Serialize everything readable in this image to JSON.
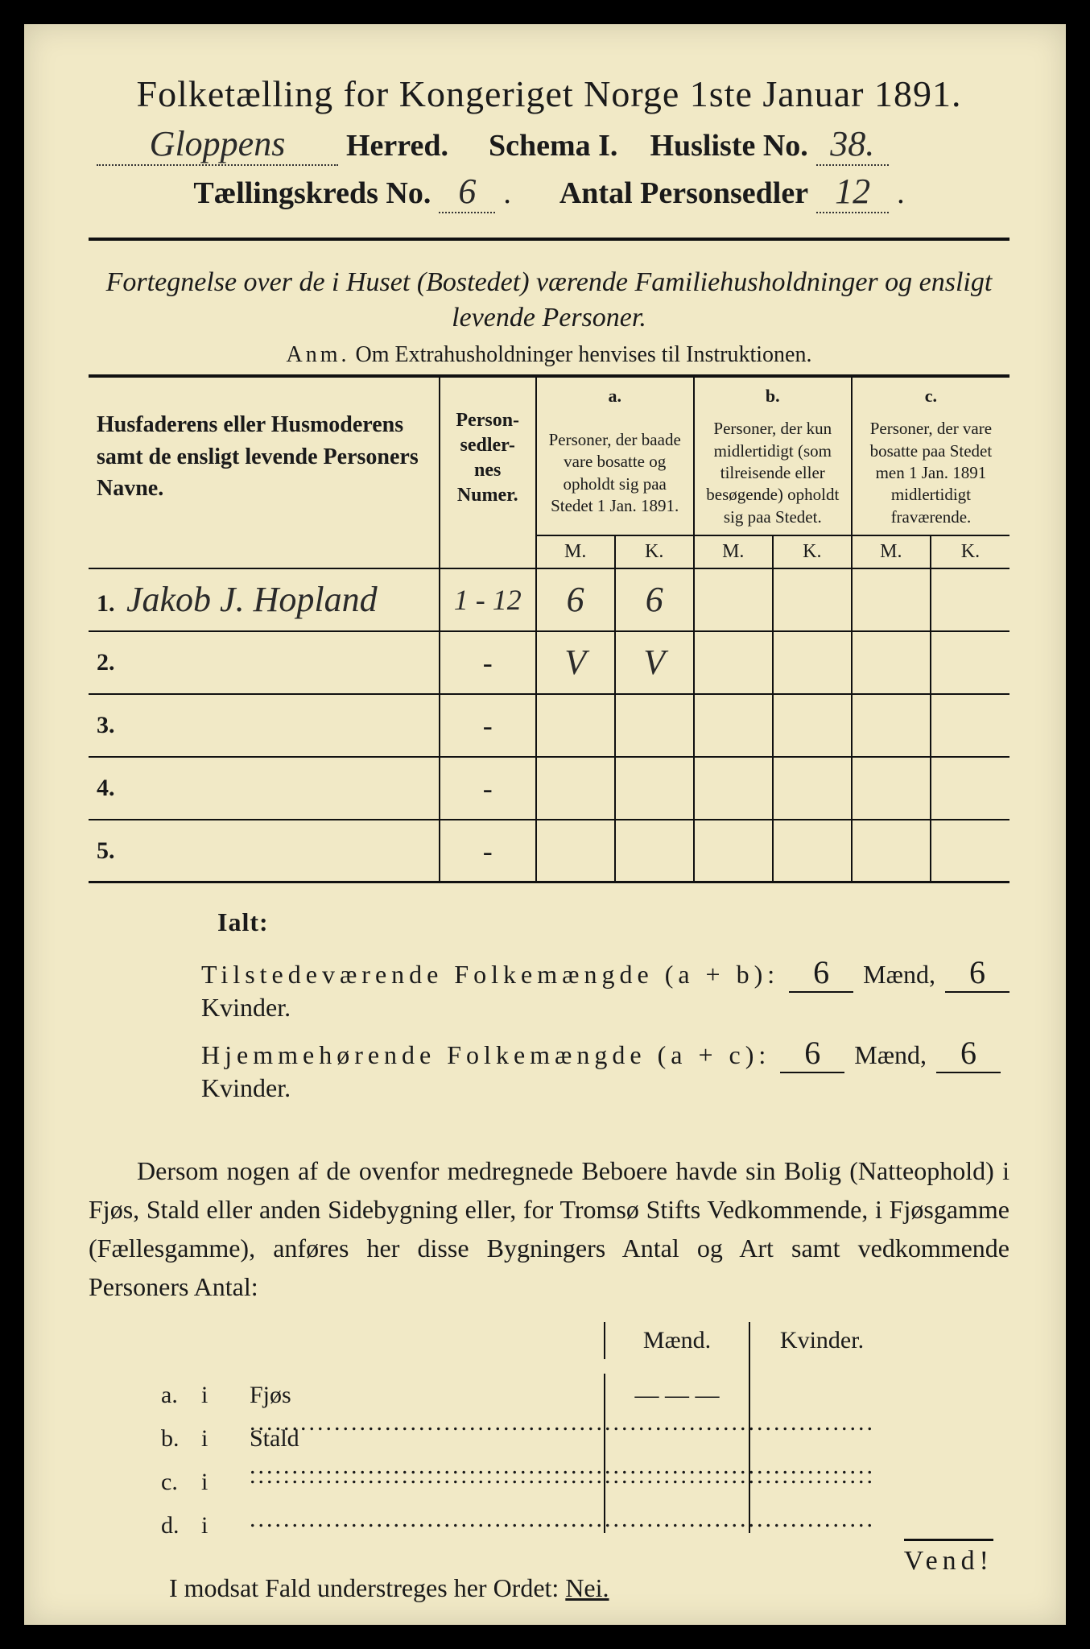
{
  "colors": {
    "paper": "#f1e9c6",
    "ink": "#1a1a1a",
    "frame": "#000000"
  },
  "header": {
    "title": "Folketælling for Kongeriget Norge 1ste Januar 1891.",
    "herred_value": "Gloppens",
    "herred_label": "Herred.",
    "schema_label": "Schema I.",
    "husliste_label": "Husliste No.",
    "husliste_value": "38.",
    "kreds_label": "Tællingskreds No.",
    "kreds_value": "6",
    "antal_label": "Antal Personsedler",
    "antal_value": "12"
  },
  "subtitle": "Fortegnelse over de i Huset (Bostedet) værende Familiehusholdninger og ensligt levende Personer.",
  "anm_label": "Anm.",
  "anm_text": "Om Extrahusholdninger henvises til Instruktionen.",
  "table": {
    "col_name": "Husfaderens eller Husmoderens samt de ensligt levende Personers Navne.",
    "col_num": "Person-\nsedler-\nnes\nNumer.",
    "col_a_key": "a.",
    "col_a": "Personer, der baade vare bosatte og opholdt sig paa Stedet 1 Jan. 1891.",
    "col_b_key": "b.",
    "col_b": "Personer, der kun midlertidigt (som tilreisende eller besøgende) opholdt sig paa Stedet.",
    "col_c_key": "c.",
    "col_c": "Personer, der vare bosatte paa Stedet men 1 Jan. 1891 midlertidigt fraværende.",
    "mk_m": "M.",
    "mk_k": "K.",
    "rows": [
      {
        "n": "1.",
        "name": "Jakob J. Hopland",
        "num": "1 - 12",
        "am": "6",
        "ak": "6",
        "bm": "",
        "bk": "",
        "cm": "",
        "ck": ""
      },
      {
        "n": "2.",
        "name": "",
        "num": "-",
        "am": "V",
        "ak": "V",
        "bm": "",
        "bk": "",
        "cm": "",
        "ck": ""
      },
      {
        "n": "3.",
        "name": "",
        "num": "-",
        "am": "",
        "ak": "",
        "bm": "",
        "bk": "",
        "cm": "",
        "ck": ""
      },
      {
        "n": "4.",
        "name": "",
        "num": "-",
        "am": "",
        "ak": "",
        "bm": "",
        "bk": "",
        "cm": "",
        "ck": ""
      },
      {
        "n": "5.",
        "name": "",
        "num": "-",
        "am": "",
        "ak": "",
        "bm": "",
        "bk": "",
        "cm": "",
        "ck": ""
      }
    ]
  },
  "ialt": {
    "title": "Ialt:",
    "row1_label": "Tilstedeværende Folkemængde (a + b):",
    "row1_m": "6",
    "row1_k": "6",
    "row2_label": "Hjemmehørende Folkemængde (a + c):",
    "row2_m": "6",
    "row2_k": "6",
    "maend": "Mænd,",
    "kvinder": "Kvinder."
  },
  "para": "Dersom nogen af de ovenfor medregnede Beboere havde sin Bolig (Natteophold) i Fjøs, Stald eller anden Sidebygning eller, for Tromsø Stifts Vedkommende, i Fjøsgamme (Fællesgamme), anføres her disse Bygningers Antal og Art samt vedkommende Personers Antal:",
  "dwell": {
    "head_m": "Mænd.",
    "head_k": "Kvinder.",
    "rows": [
      {
        "k": "a.",
        "i": "i",
        "t": "Fjøs",
        "c1": "— — —",
        "c2": ""
      },
      {
        "k": "b.",
        "i": "i",
        "t": "Stald",
        "c1": "",
        "c2": ""
      },
      {
        "k": "c.",
        "i": "i",
        "t": "",
        "c1": "",
        "c2": ""
      },
      {
        "k": "d.",
        "i": "i",
        "t": "",
        "c1": "",
        "c2": ""
      }
    ]
  },
  "nei_text": "I modsat Fald understreges her Ordet:",
  "nei_word": "Nei.",
  "vend": "Vend!"
}
